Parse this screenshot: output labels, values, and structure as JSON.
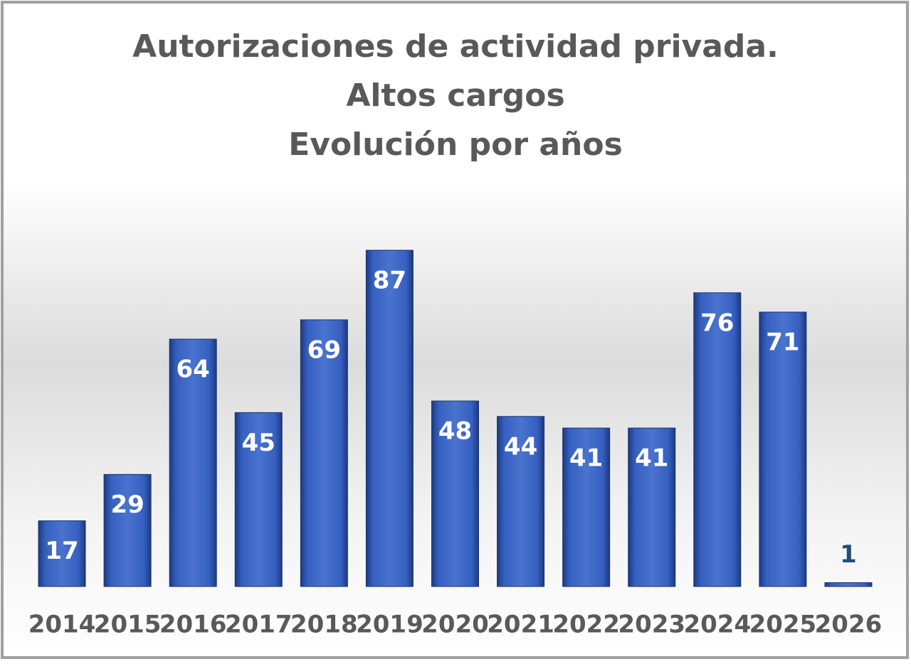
{
  "chart_data": {
    "type": "bar",
    "title": [
      "Autorizaciones de actividad privada.",
      "Altos cargos",
      "Evolución por años"
    ],
    "categories": [
      "2014",
      "2015",
      "2016",
      "2017",
      "2018",
      "2019",
      "2020",
      "2021",
      "2022",
      "2023",
      "2024",
      "2025",
      "2026"
    ],
    "values": [
      17,
      29,
      64,
      45,
      69,
      87,
      48,
      44,
      41,
      41,
      76,
      71,
      1
    ],
    "color": "#2f56b0"
  }
}
